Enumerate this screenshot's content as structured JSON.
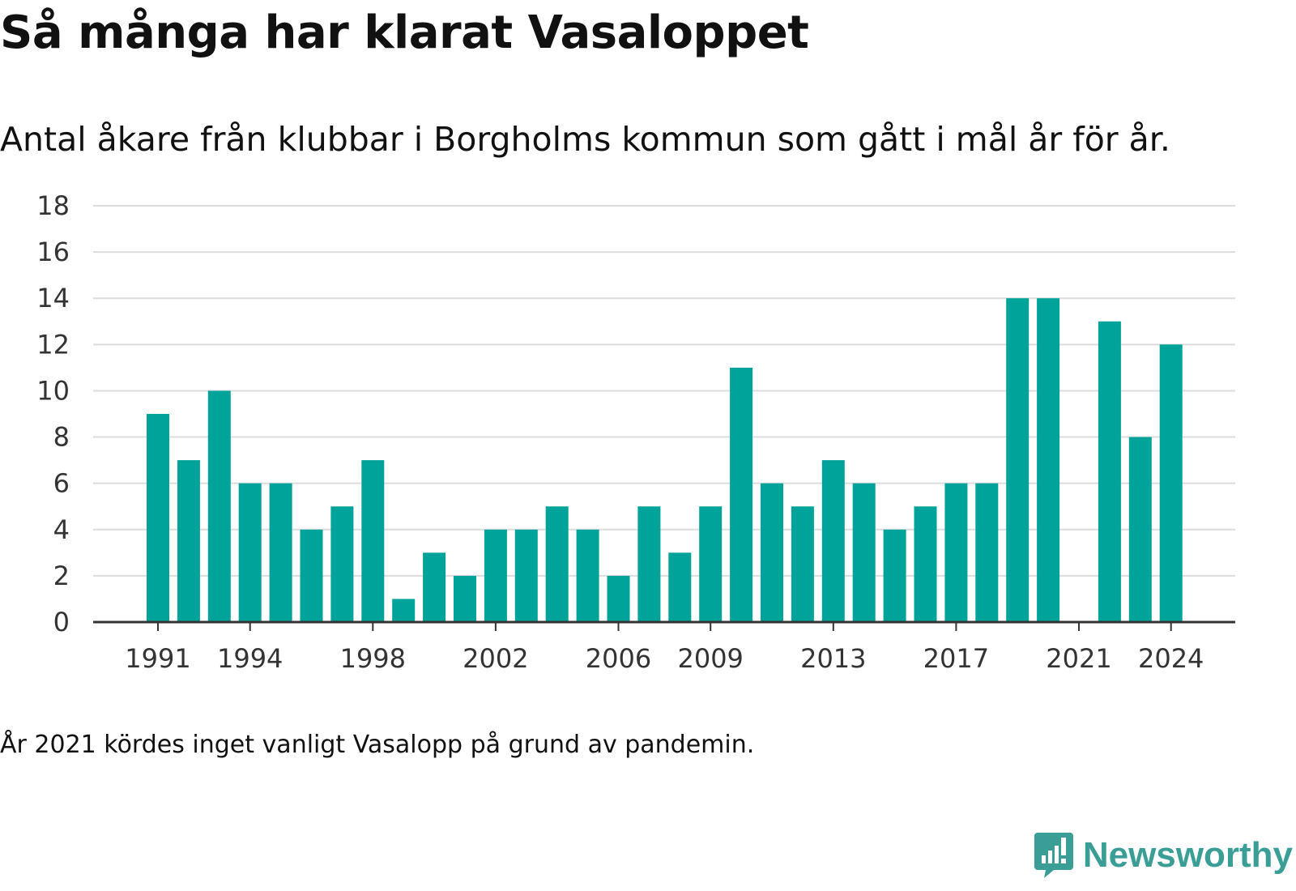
{
  "chart_data": {
    "type": "bar",
    "title": "Så många har klarat Vasaloppet",
    "subtitle": "Antal åkare från klubbar i Borgholms kommun som gått i mål år för år.",
    "categories": [
      1991,
      1992,
      1993,
      1994,
      1995,
      1996,
      1997,
      1998,
      1999,
      2000,
      2001,
      2002,
      2003,
      2004,
      2005,
      2006,
      2007,
      2008,
      2009,
      2010,
      2011,
      2012,
      2013,
      2014,
      2015,
      2016,
      2017,
      2018,
      2019,
      2020,
      2021,
      2022,
      2023,
      2024
    ],
    "values": [
      9,
      7,
      10,
      6,
      6,
      4,
      5,
      7,
      1,
      3,
      2,
      4,
      4,
      5,
      4,
      2,
      5,
      3,
      5,
      11,
      6,
      5,
      7,
      6,
      4,
      5,
      6,
      6,
      14,
      14,
      null,
      13,
      8,
      12
    ],
    "x_tick_labels": [
      "1991",
      "1994",
      "1998",
      "2002",
      "2006",
      "2009",
      "2013",
      "2017",
      "2021",
      "2024"
    ],
    "y_ticks": [
      0,
      2,
      4,
      6,
      8,
      10,
      12,
      14,
      16,
      18
    ],
    "ylim": [
      0,
      18
    ],
    "xlabel": "",
    "ylabel": "",
    "grid": true,
    "bar_color": "#00a39a",
    "grid_color": "#dcdcdc",
    "axis_color": "#333333"
  },
  "note": "År 2021 kördes inget vanligt Vasalopp på grund av pandemin.",
  "brand": {
    "name": "Newsworthy",
    "icon": "newsworthy-logo-icon",
    "color": "#3a9e96"
  }
}
